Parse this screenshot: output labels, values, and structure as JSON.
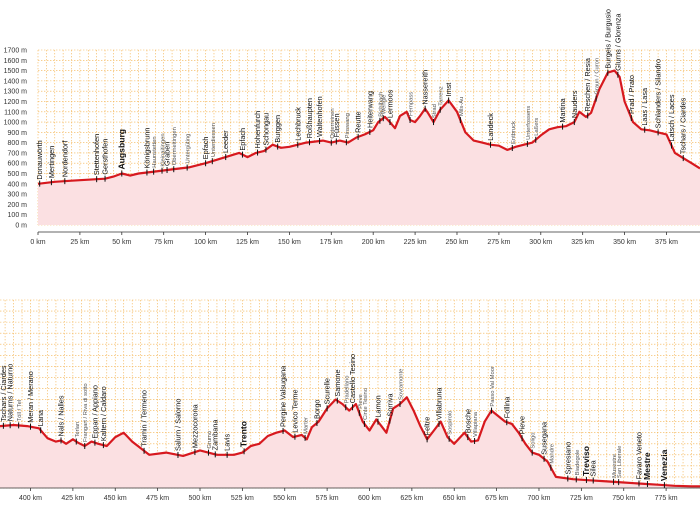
{
  "chart_data": [
    {
      "type": "area",
      "panel": "top",
      "xlabel": "",
      "ylabel": "",
      "xlim": [
        0,
        395
      ],
      "ylim": [
        0,
        1700
      ],
      "grid": true,
      "x_ticks": [
        "0 km",
        "25 km",
        "50 km",
        "75 km",
        "100 km",
        "125 km",
        "150 km",
        "175 km",
        "200 km",
        "225 km",
        "250 km",
        "275 km",
        "300 km",
        "325 km",
        "350 km",
        "375 km"
      ],
      "x_tick_values": [
        0,
        25,
        50,
        75,
        100,
        125,
        150,
        175,
        200,
        225,
        250,
        275,
        300,
        325,
        350,
        375
      ],
      "y_ticks": [
        "0 m",
        "100 m",
        "200 m",
        "300 m",
        "400 m",
        "500 m",
        "600 m",
        "700 m",
        "800 m",
        "900 m",
        "1000 m",
        "1100 m",
        "1200 m",
        "1300 m",
        "1400 m",
        "1500 m",
        "1600 m",
        "1700 m"
      ],
      "y_tick_values": [
        0,
        100,
        200,
        300,
        400,
        500,
        600,
        700,
        800,
        900,
        1000,
        1100,
        1200,
        1300,
        1400,
        1500,
        1600,
        1700
      ],
      "series": [
        {
          "name": "Elevation",
          "x": [
            0,
            10,
            20,
            30,
            40,
            45,
            50,
            55,
            60,
            70,
            80,
            90,
            100,
            110,
            120,
            125,
            130,
            135,
            140,
            145,
            150,
            160,
            170,
            175,
            180,
            185,
            190,
            195,
            200,
            203,
            207,
            210,
            213,
            216,
            220,
            222,
            225,
            228,
            231,
            233,
            236,
            240,
            245,
            250,
            255,
            260,
            265,
            270,
            275,
            280,
            285,
            290,
            295,
            300,
            305,
            310,
            315,
            320,
            323,
            327,
            330,
            335,
            340,
            344,
            347,
            350,
            355,
            360,
            365,
            370,
            375,
            380,
            385,
            390,
            395
          ],
          "y": [
            400,
            420,
            430,
            440,
            450,
            470,
            500,
            480,
            500,
            520,
            540,
            560,
            600,
            650,
            700,
            660,
            700,
            720,
            780,
            750,
            760,
            800,
            820,
            800,
            820,
            800,
            850,
            880,
            920,
            1000,
            1050,
            1000,
            940,
            1060,
            1100,
            1020,
            1000,
            1060,
            1130,
            1080,
            1000,
            1120,
            1210,
            1100,
            900,
            820,
            800,
            780,
            770,
            730,
            760,
            780,
            800,
            870,
            930,
            950,
            960,
            1000,
            1100,
            1050,
            1090,
            1320,
            1480,
            1500,
            1440,
            1200,
            1000,
            930,
            920,
            900,
            880,
            700,
            650,
            600,
            550
          ]
        }
      ],
      "places": [
        {
          "km": 1,
          "label": "Donauwörth",
          "style": "normal"
        },
        {
          "km": 8,
          "label": "Mertingen",
          "style": "normal"
        },
        {
          "km": 16,
          "label": "Nordendorf",
          "style": "normal"
        },
        {
          "km": 35,
          "label": "Stettenhofen",
          "style": "normal"
        },
        {
          "km": 40,
          "label": "Gersthofen",
          "style": "normal"
        },
        {
          "km": 50,
          "label": "Augsburg",
          "style": "bold"
        },
        {
          "km": 65,
          "label": "Königsbrunn",
          "style": "normal"
        },
        {
          "km": 69,
          "label": "Haunstetten",
          "style": "small"
        },
        {
          "km": 74,
          "label": "Kleinaitingen",
          "style": "small"
        },
        {
          "km": 77,
          "label": "Graben",
          "style": "normal"
        },
        {
          "km": 81,
          "label": "Obermeitingen",
          "style": "small"
        },
        {
          "km": 89,
          "label": "Untergüting",
          "style": "small"
        },
        {
          "km": 100,
          "label": "Epfach",
          "style": "normal"
        },
        {
          "km": 104,
          "label": "Unterdiessen",
          "style": "small"
        },
        {
          "km": 112,
          "label": "Leeder",
          "style": "normal"
        },
        {
          "km": 122,
          "label": "Epfach",
          "style": "normal"
        },
        {
          "km": 131,
          "label": "Hohenfurch",
          "style": "normal"
        },
        {
          "km": 136,
          "label": "Schongau",
          "style": "normal"
        },
        {
          "km": 143,
          "label": "Burggen",
          "style": "normal"
        },
        {
          "km": 155,
          "label": "Lechbruck",
          "style": "normal"
        },
        {
          "km": 162,
          "label": "Roßhaupten",
          "style": "normal"
        },
        {
          "km": 168,
          "label": "Waltenhofen",
          "style": "normal"
        },
        {
          "km": 175,
          "label": "Osterreinen",
          "style": "small"
        },
        {
          "km": 178,
          "label": "Füssen",
          "style": "normal"
        },
        {
          "km": 184,
          "label": "Pinswang",
          "style": "small"
        },
        {
          "km": 191,
          "label": "Reutte",
          "style": "normal"
        },
        {
          "km": 198,
          "label": "Heiterwang",
          "style": "normal"
        },
        {
          "km": 204,
          "label": "Bichlbach",
          "style": "small"
        },
        {
          "km": 206,
          "label": "Wengle",
          "style": "small"
        },
        {
          "km": 210,
          "label": "Lermoos",
          "style": "normal"
        },
        {
          "km": 222,
          "label": "Fernpass",
          "style": "small"
        },
        {
          "km": 231,
          "label": "Nassereith",
          "style": "normal"
        },
        {
          "km": 236,
          "label": "Strad",
          "style": "small"
        },
        {
          "km": 240,
          "label": "Tarrenz",
          "style": "small"
        },
        {
          "km": 245,
          "label": "Imst",
          "style": "normal"
        },
        {
          "km": 252,
          "label": "Mils-Au",
          "style": "small"
        },
        {
          "km": 270,
          "label": "Landeck",
          "style": "normal"
        },
        {
          "km": 283,
          "label": "Entbruck",
          "style": "small"
        },
        {
          "km": 292,
          "label": "Unterfossens",
          "style": "small"
        },
        {
          "km": 297,
          "label": "Laßers",
          "style": "small"
        },
        {
          "km": 313,
          "label": "Martina",
          "style": "normal"
        },
        {
          "km": 320,
          "label": "Nauders",
          "style": "normal"
        },
        {
          "km": 328,
          "label": "Reschen / Resia",
          "style": "normal"
        },
        {
          "km": 333,
          "label": "Graun / Curon",
          "style": "small"
        },
        {
          "km": 340,
          "label": "Burgeis / Burgusio",
          "style": "normal"
        },
        {
          "km": 346,
          "label": "Glurns / Glorenza",
          "style": "normal"
        },
        {
          "km": 354,
          "label": "Prad / Prato",
          "style": "normal"
        },
        {
          "km": 362,
          "label": "Laas / Lasa",
          "style": "normal"
        },
        {
          "km": 370,
          "label": "Schlanders / Silandro",
          "style": "normal"
        },
        {
          "km": 378,
          "label": "Latsch / Laces",
          "style": "normal"
        },
        {
          "km": 385,
          "label": "Tschars / Ciardes",
          "style": "normal"
        }
      ]
    },
    {
      "type": "area",
      "panel": "bottom",
      "xlabel": "",
      "ylabel": "",
      "xlim": [
        382,
        795
      ],
      "ylim": [
        0,
        1700
      ],
      "grid": true,
      "x_ticks": [
        "400 km",
        "425 km",
        "450 km",
        "475 km",
        "500 km",
        "525 km",
        "550 km",
        "575 km",
        "600 km",
        "625 km",
        "650 km",
        "675 km",
        "700 km",
        "725 km",
        "750 km",
        "775 km"
      ],
      "x_tick_values": [
        400,
        425,
        450,
        475,
        500,
        525,
        550,
        575,
        600,
        625,
        650,
        675,
        700,
        725,
        750,
        775
      ],
      "series": [
        {
          "name": "Elevation",
          "x": [
            382,
            390,
            398,
            405,
            410,
            415,
            418,
            421,
            425,
            428,
            432,
            436,
            440,
            445,
            450,
            455,
            460,
            470,
            480,
            490,
            500,
            510,
            520,
            525,
            530,
            535,
            540,
            545,
            550,
            555,
            560,
            563,
            566,
            570,
            575,
            580,
            584,
            588,
            592,
            596,
            600,
            604,
            607,
            610,
            614,
            618,
            622,
            626,
            630,
            634,
            638,
            642,
            646,
            650,
            653,
            656,
            660,
            664,
            668,
            672,
            676,
            680,
            684,
            688,
            692,
            696,
            700,
            705,
            710,
            720,
            730,
            740,
            750,
            760,
            770,
            780,
            790,
            795
          ],
          "y": [
            560,
            570,
            560,
            540,
            450,
            420,
            430,
            400,
            440,
            410,
            380,
            420,
            400,
            380,
            460,
            500,
            420,
            300,
            320,
            290,
            340,
            300,
            300,
            320,
            380,
            400,
            470,
            500,
            520,
            460,
            480,
            440,
            550,
            600,
            720,
            800,
            760,
            700,
            760,
            600,
            520,
            620,
            560,
            500,
            720,
            760,
            820,
            700,
            560,
            440,
            520,
            600,
            460,
            400,
            450,
            500,
            420,
            430,
            600,
            700,
            650,
            600,
            580,
            500,
            400,
            320,
            300,
            240,
            100,
            80,
            70,
            60,
            50,
            40,
            30,
            20,
            15,
            15
          ]
        }
      ],
      "places": [
        {
          "km": 384,
          "label": "Tschars / Ciardes",
          "style": "normal"
        },
        {
          "km": 388,
          "label": "Naturns / Naturno",
          "style": "normal"
        },
        {
          "km": 393,
          "label": "Töll / Tel",
          "style": "small"
        },
        {
          "km": 400,
          "label": "Meran / Merano",
          "style": "normal"
        },
        {
          "km": 406,
          "label": "Lana",
          "style": "normal"
        },
        {
          "km": 418,
          "label": "Nals / Nalles",
          "style": "normal"
        },
        {
          "km": 427,
          "label": "Terlan",
          "style": "small"
        },
        {
          "km": 432,
          "label": "Frangart / Riva di sotto",
          "style": "small"
        },
        {
          "km": 438,
          "label": "Eppan / Appiano",
          "style": "normal"
        },
        {
          "km": 443,
          "label": "Kaltern / Caldaro",
          "style": "normal"
        },
        {
          "km": 467,
          "label": "Tramin / Termeno",
          "style": "normal"
        },
        {
          "km": 487,
          "label": "Salurn / Salorno",
          "style": "normal"
        },
        {
          "km": 497,
          "label": "Mezzocorona",
          "style": "normal"
        },
        {
          "km": 505,
          "label": "Grumo",
          "style": "small"
        },
        {
          "km": 509,
          "label": "Zambana",
          "style": "normal"
        },
        {
          "km": 516,
          "label": "Lavis",
          "style": "normal"
        },
        {
          "km": 526,
          "label": "Trento",
          "style": "bold"
        },
        {
          "km": 549,
          "label": "Pergine Valsugana",
          "style": "normal"
        },
        {
          "km": 556,
          "label": "Levico Terme",
          "style": "normal"
        },
        {
          "km": 562,
          "label": "Marter",
          "style": "small"
        },
        {
          "km": 569,
          "label": "Borgo",
          "style": "normal"
        },
        {
          "km": 575,
          "label": "Scurelle",
          "style": "normal"
        },
        {
          "km": 581,
          "label": "Samone",
          "style": "normal"
        },
        {
          "km": 586,
          "label": "Pradellano",
          "style": "small"
        },
        {
          "km": 590,
          "label": "Castello Tesino",
          "style": "normal"
        },
        {
          "km": 594,
          "label": "Pieve",
          "style": "small"
        },
        {
          "km": 597,
          "label": "Cinte Tesino",
          "style": "small"
        },
        {
          "km": 605,
          "label": "Lamon",
          "style": "normal"
        },
        {
          "km": 612,
          "label": "Sorriva",
          "style": "normal"
        },
        {
          "km": 618,
          "label": "Sovramonte",
          "style": "small"
        },
        {
          "km": 634,
          "label": "Feltre",
          "style": "normal"
        },
        {
          "km": 641,
          "label": "Villabruna",
          "style": "normal"
        },
        {
          "km": 647,
          "label": "Sospirolo",
          "style": "small"
        },
        {
          "km": 658,
          "label": "Bosche",
          "style": "normal"
        },
        {
          "km": 662,
          "label": "Villapiana",
          "style": "small"
        },
        {
          "km": 672,
          "label": "Passo Val Moor",
          "style": "small"
        },
        {
          "km": 681,
          "label": "Follina",
          "style": "normal"
        },
        {
          "km": 690,
          "label": "Pieve",
          "style": "normal"
        },
        {
          "km": 696,
          "label": "Soligo",
          "style": "small"
        },
        {
          "km": 703,
          "label": "Susegana",
          "style": "normal"
        },
        {
          "km": 707,
          "label": "Mandre",
          "style": "small"
        },
        {
          "km": 717,
          "label": "Spresiano",
          "style": "normal"
        },
        {
          "km": 722,
          "label": "Biadegole",
          "style": "small"
        },
        {
          "km": 728,
          "label": "Treviso",
          "style": "bold"
        },
        {
          "km": 732,
          "label": "Silea",
          "style": "normal"
        },
        {
          "km": 744,
          "label": "Musestre",
          "style": "small"
        },
        {
          "km": 747,
          "label": "San Liberale",
          "style": "small"
        },
        {
          "km": 759,
          "label": "Favaro Veneto",
          "style": "normal"
        },
        {
          "km": 764,
          "label": "Mestre",
          "style": "bold"
        },
        {
          "km": 774,
          "label": "Venezia",
          "style": "bold"
        }
      ]
    }
  ],
  "style": {
    "line_color": "#d7191f",
    "fill_color": "#fbe0e2",
    "grid_color": "#f4b24e",
    "tick_color": "#333333",
    "marker_color": "#111111"
  }
}
